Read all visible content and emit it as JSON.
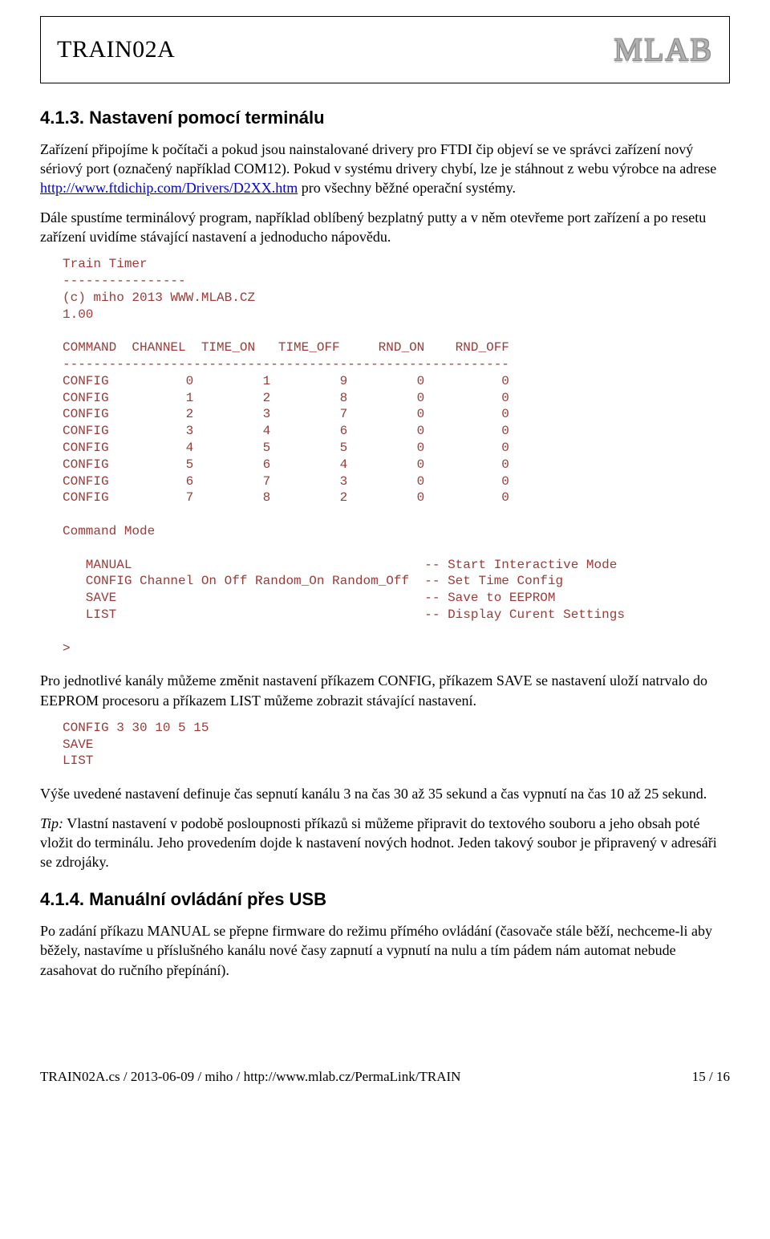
{
  "header": {
    "title": "TRAIN02A",
    "logo": "MLAB"
  },
  "section1": {
    "heading": "4.1.3. Nastavení pomocí terminálu",
    "p1a": "Zařízení připojíme k počítači a pokud jsou nainstalované drivery pro FTDI čip objeví se ve správci zařízení nový sériový port (označený například COM12). Pokud v systému drivery chybí, lze je stáhnout z webu výrobce na adrese ",
    "link": "http://www.ftdichip.com/Drivers/D2XX.htm",
    "p1b": " pro všechny běžné operační systémy.",
    "p2": "Dále spustíme terminálový program, například oblíbený bezplatný putty a v něm otevřeme port zařízení a po resetu zařízení uvidíme stávající nastavení a jednoducho nápovědu."
  },
  "code1": {
    "intro_lines": [
      "Train Timer",
      "----------------",
      "(c) miho 2013 WWW.MLAB.CZ",
      "1.00",
      ""
    ],
    "table_header": [
      "COMMAND",
      "CHANNEL",
      "TIME_ON",
      "TIME_OFF",
      "RND_ON",
      "RND_OFF"
    ],
    "table_sep": "----------------------------------------------------------",
    "rows": [
      [
        "CONFIG",
        "0",
        "1",
        "9",
        "0",
        "0"
      ],
      [
        "CONFIG",
        "1",
        "2",
        "8",
        "0",
        "0"
      ],
      [
        "CONFIG",
        "2",
        "3",
        "7",
        "0",
        "0"
      ],
      [
        "CONFIG",
        "3",
        "4",
        "6",
        "0",
        "0"
      ],
      [
        "CONFIG",
        "4",
        "5",
        "5",
        "0",
        "0"
      ],
      [
        "CONFIG",
        "5",
        "6",
        "4",
        "0",
        "0"
      ],
      [
        "CONFIG",
        "6",
        "7",
        "3",
        "0",
        "0"
      ],
      [
        "CONFIG",
        "7",
        "8",
        "2",
        "0",
        "0"
      ]
    ],
    "cmd_mode_label": "Command Mode",
    "cmds": [
      [
        "MANUAL",
        "",
        "-- Start Interactive Mode"
      ],
      [
        "CONFIG Channel On Off Random_On Random_Off",
        "",
        "-- Set Time Config"
      ],
      [
        "SAVE",
        "",
        "-- Save to EEPROM"
      ],
      [
        "LIST",
        "",
        "-- Display Curent Settings"
      ]
    ],
    "prompt": ">",
    "col_widths_table": [
      10,
      10,
      10,
      10,
      10,
      10
    ],
    "col_widths_cmds": [
      44,
      0,
      0
    ]
  },
  "after_code1": {
    "p1": "Pro jednotlivé kanály můžeme změnit nastavení příkazem CONFIG, příkazem SAVE se nastavení uloží natrvalo do EEPROM procesoru a příkazem LIST můžeme zobrazit stávající nastavení."
  },
  "code2_lines": [
    "CONFIG 3 30 10 5 15",
    "SAVE",
    "LIST"
  ],
  "after_code2": {
    "p1": "Výše uvedené nastavení definuje čas sepnutí kanálu 3 na čas 30 až 35 sekund a čas vypnutí na čas 10 až 25 sekund.",
    "tip_label": "Tip:",
    "tip_body": " Vlastní nastavení v podobě posloupnosti příkazů si můžeme připravit do textového souboru a jeho obsah poté vložit do terminálu. Jeho provedením dojde k nastavení nových hodnot. Jeden takový soubor je připravený v adresáři se zdrojáky."
  },
  "section2": {
    "heading": "4.1.4. Manuální ovládání přes USB",
    "p1": "Po zadání příkazu MANUAL se přepne firmware do režimu přímého ovládání (časovače stále běží, nechceme-li aby běžely, nastavíme u příslušného kanálu nové časy zapnutí a vypnutí na nulu a tím pádem nám automat nebude zasahovat do ručního přepínání)."
  },
  "footer": {
    "left": "TRAIN02A.cs / 2013-06-09 / miho / http://www.mlab.cz/PermaLink/TRAIN",
    "right": "15 / 16"
  },
  "style": {
    "code_color": "#9a3b38",
    "link_color": "#0000cc"
  }
}
